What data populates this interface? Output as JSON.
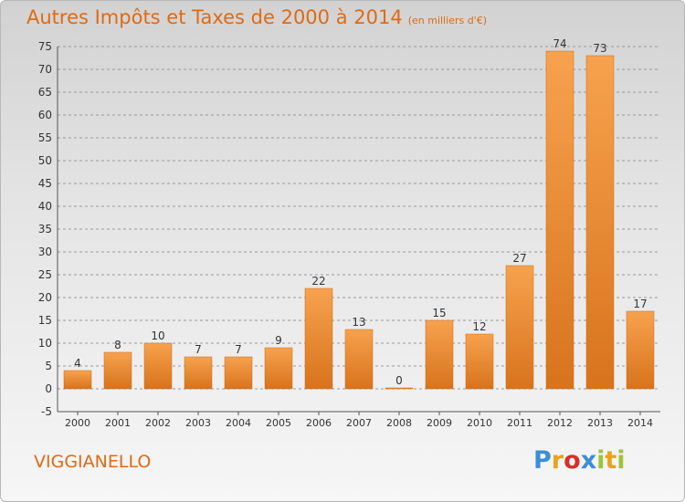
{
  "header": {
    "title": "Autres Impôts et Taxes de 2000 à 2014",
    "subtitle": "(en milliers d'€)"
  },
  "footer": {
    "commune": "VIGGIANELLO",
    "logo_letters": [
      "P",
      "r",
      "o",
      "x",
      "i",
      "t",
      "i"
    ],
    "logo_colors": [
      "#3a8fd6",
      "#e8a21c",
      "#d6302a",
      "#3a8fd6",
      "#9cc43c",
      "#e8a21c",
      "#9cc43c"
    ]
  },
  "colors": {
    "title": "#e06a14",
    "bar_light": "#f7a24e",
    "bar_dark": "#d8731c",
    "grid": "#999999",
    "axis_text": "#333333"
  },
  "chart_data": {
    "type": "bar",
    "categories": [
      "2000",
      "2001",
      "2002",
      "2003",
      "2004",
      "2005",
      "2006",
      "2007",
      "2008",
      "2009",
      "2010",
      "2011",
      "2012",
      "2013",
      "2014"
    ],
    "values": [
      4,
      8,
      10,
      7,
      7,
      9,
      22,
      13,
      0,
      15,
      12,
      27,
      74,
      73,
      17
    ],
    "ylim": [
      -5,
      75
    ],
    "yticks": [
      -5,
      0,
      5,
      10,
      15,
      20,
      25,
      30,
      35,
      40,
      45,
      50,
      55,
      60,
      65,
      70,
      75
    ],
    "grid": "horizontal dashed",
    "data_labels": true
  }
}
